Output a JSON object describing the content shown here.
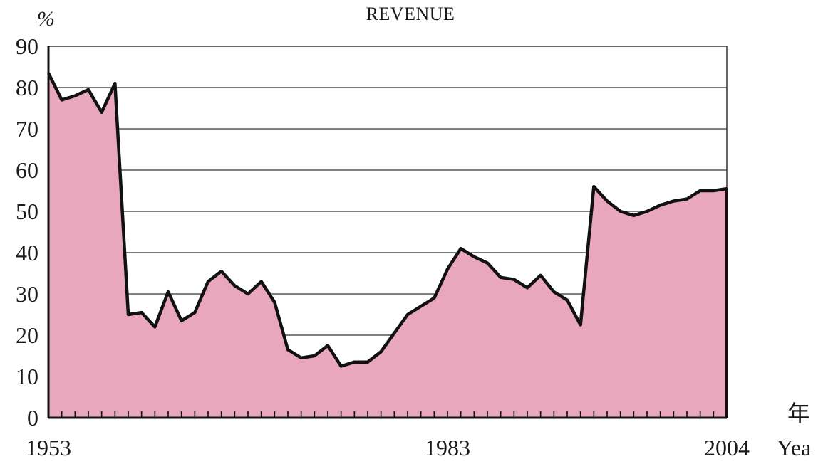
{
  "chart_data": {
    "type": "area",
    "title": "REVENUE",
    "ylabel": "%",
    "xlabel_cn": "年",
    "xlabel": "Yea",
    "ylim": [
      0,
      90
    ],
    "yticks": [
      0,
      10,
      20,
      30,
      40,
      50,
      60,
      70,
      80,
      90
    ],
    "xlim": [
      1953,
      2004
    ],
    "xtick_labels": [
      "1953",
      "1983",
      "2004"
    ],
    "grid": true,
    "fill_color": "#e8a7bd",
    "line_color": "#111111",
    "series": [
      {
        "x": [
          1953,
          1954,
          1955,
          1956,
          1957,
          1958,
          1959,
          1960,
          1961,
          1962,
          1963,
          1964,
          1965,
          1966,
          1967,
          1968,
          1969,
          1970,
          1971,
          1972,
          1973,
          1974,
          1975,
          1976,
          1977,
          1978,
          1979,
          1980,
          1981,
          1982,
          1983,
          1984,
          1985,
          1986,
          1987,
          1988,
          1989,
          1990,
          1991,
          1992,
          1993,
          1994,
          1995,
          1996,
          1997,
          1998,
          1999,
          2000,
          2001,
          2002,
          2003,
          2004
        ],
        "y": [
          83.5,
          77,
          78,
          79.5,
          74,
          81,
          25,
          25.5,
          22,
          30.5,
          23.5,
          25.5,
          33,
          35.5,
          32,
          30,
          33,
          28,
          16.5,
          14.5,
          15,
          17.5,
          12.5,
          13.5,
          13.5,
          16,
          20.5,
          25,
          27,
          29,
          36,
          41,
          39,
          37.5,
          34,
          33.5,
          31.5,
          34.5,
          30.5,
          28.5,
          22.5,
          56,
          52.5,
          50,
          49,
          50,
          51.5,
          52.5,
          53,
          55,
          55,
          55.5
        ]
      }
    ]
  }
}
